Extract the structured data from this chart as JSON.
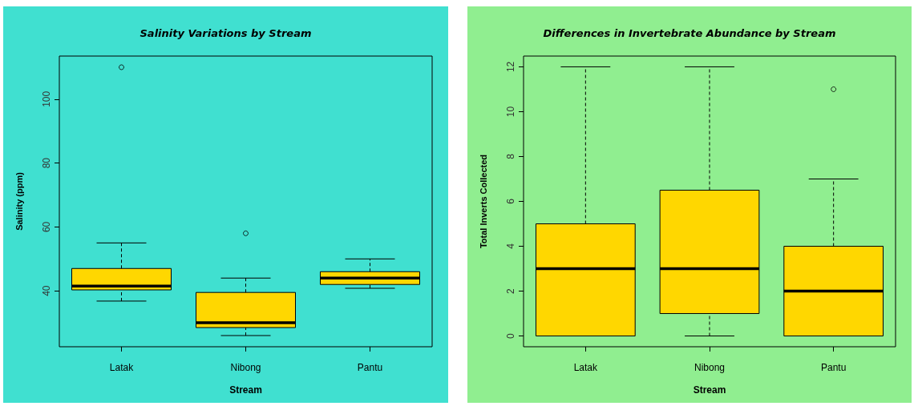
{
  "chart_data": [
    {
      "type": "box",
      "title": "Salinity Variations by Stream",
      "xlabel": "Stream",
      "ylabel": "Salinity (ppm)",
      "categories": [
        "Latak",
        "Nibong",
        "Pantu"
      ],
      "ylim": [
        22.5,
        113.5
      ],
      "yticks": [
        40,
        60,
        80,
        100
      ],
      "grid": false,
      "series": [
        {
          "color": "#ffd700",
          "boxes": [
            {
              "low": 36.8,
              "q1": 40.3,
              "median": 41.5,
              "q3": 47,
              "high": 55,
              "outliers": [
                110
              ]
            },
            {
              "low": 26,
              "q1": 28.5,
              "median": 30,
              "q3": 39.5,
              "high": 44,
              "outliers": [
                58
              ]
            },
            {
              "low": 40.8,
              "q1": 42,
              "median": 44,
              "q3": 46,
              "high": 50
            }
          ]
        }
      ]
    },
    {
      "type": "box",
      "title": "Differences in Invertebrate Abundance by Stream",
      "xlabel": "Stream",
      "ylabel": "Total Inverts Collected",
      "categories": [
        "Latak",
        "Nibong",
        "Pantu"
      ],
      "ylim": [
        -0.48,
        12.48
      ],
      "yticks": [
        0,
        2,
        4,
        6,
        8,
        10,
        12
      ],
      "grid": false,
      "series": [
        {
          "color": "#ffd700",
          "boxes": [
            {
              "low": 0,
              "q1": 0,
              "median": 3,
              "q3": 5,
              "high": 12
            },
            {
              "low": 0,
              "q1": 1,
              "median": 3,
              "q3": 6.5,
              "high": 12
            },
            {
              "low": 0,
              "q1": 0,
              "median": 2,
              "q3": 4,
              "high": 7,
              "outliers": [
                11
              ]
            }
          ]
        }
      ]
    }
  ]
}
